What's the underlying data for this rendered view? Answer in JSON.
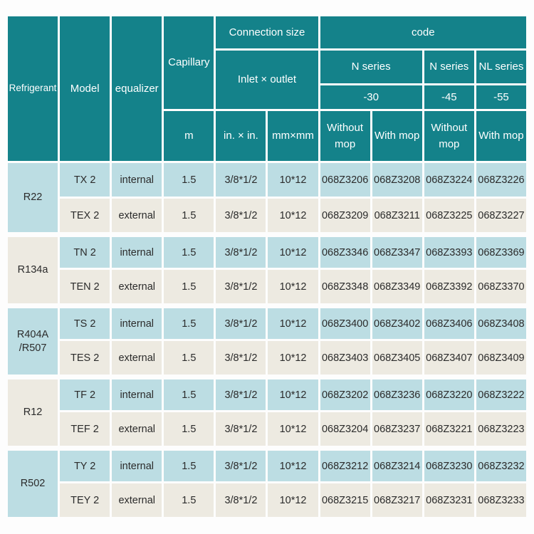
{
  "colors": {
    "header_teal": "#14828a",
    "row_blue": "#bcdde3",
    "row_cream": "#edeae1",
    "separator_white": "#fdfdfd",
    "data_text": "#2b2b2b",
    "header_text": "#ffffff"
  },
  "header": {
    "refrigerant": "Refrigerant",
    "model": "Model",
    "equalizer": "equalizer",
    "capillary": "Capillary",
    "capillary_unit": "m",
    "connection_size": "Connection size",
    "inlet_outlet": "Inlet × outlet",
    "in_x_in": "in. × in.",
    "mm_x_mm": "mm×mm",
    "code": "code",
    "n_series_1": "N series",
    "n_series_2": "N series",
    "nl_series": "NL series",
    "temp_30": "-30",
    "temp_45": "-45",
    "temp_55": "-55",
    "without_mop_1": "Without mop",
    "with_mop_1": "With mop",
    "without_mop_2": "Without mop",
    "with_mop_2": "With mop"
  },
  "groups": [
    {
      "refrigerant": "R22",
      "rows": [
        {
          "model": "TX 2",
          "equalizer": "internal",
          "capillary": "1.5",
          "inlet": "3/8*1/2",
          "mm": "10*12",
          "codes": [
            "068Z3206",
            "068Z3208",
            "068Z3224",
            "068Z3226"
          ]
        },
        {
          "model": "TEX 2",
          "equalizer": "external",
          "capillary": "1.5",
          "inlet": "3/8*1/2",
          "mm": "10*12",
          "codes": [
            "068Z3209",
            "068Z3211",
            "068Z3225",
            "068Z3227"
          ]
        }
      ]
    },
    {
      "refrigerant": "R134a",
      "rows": [
        {
          "model": "TN 2",
          "equalizer": "internal",
          "capillary": "1.5",
          "inlet": "3/8*1/2",
          "mm": "10*12",
          "codes": [
            "068Z3346",
            "068Z3347",
            "068Z3393",
            "068Z3369"
          ]
        },
        {
          "model": "TEN 2",
          "equalizer": "external",
          "capillary": "1.5",
          "inlet": "3/8*1/2",
          "mm": "10*12",
          "codes": [
            "068Z3348",
            "068Z3349",
            "068Z3392",
            "068Z3370"
          ]
        }
      ]
    },
    {
      "refrigerant": "R404A\n/R507",
      "rows": [
        {
          "model": "TS 2",
          "equalizer": "internal",
          "capillary": "1.5",
          "inlet": "3/8*1/2",
          "mm": "10*12",
          "codes": [
            "068Z3400",
            "068Z3402",
            "068Z3406",
            "068Z3408"
          ]
        },
        {
          "model": "TES 2",
          "equalizer": "external",
          "capillary": "1.5",
          "inlet": "3/8*1/2",
          "mm": "10*12",
          "codes": [
            "068Z3403",
            "068Z3405",
            "068Z3407",
            "068Z3409"
          ]
        }
      ]
    },
    {
      "refrigerant": "R12",
      "rows": [
        {
          "model": "TF 2",
          "equalizer": "internal",
          "capillary": "1.5",
          "inlet": "3/8*1/2",
          "mm": "10*12",
          "codes": [
            "068Z3202",
            "068Z3236",
            "068Z3220",
            "068Z3222"
          ]
        },
        {
          "model": "TEF 2",
          "equalizer": "external",
          "capillary": "1.5",
          "inlet": "3/8*1/2",
          "mm": "10*12",
          "codes": [
            "068Z3204",
            "068Z3237",
            "068Z3221",
            "068Z3223"
          ]
        }
      ]
    },
    {
      "refrigerant": "R502",
      "rows": [
        {
          "model": "TY 2",
          "equalizer": "internal",
          "capillary": "1.5",
          "inlet": "3/8*1/2",
          "mm": "10*12",
          "codes": [
            "068Z3212",
            "068Z3214",
            "068Z3230",
            "068Z3232"
          ]
        },
        {
          "model": "TEY 2",
          "equalizer": "external",
          "capillary": "1.5",
          "inlet": "3/8*1/2",
          "mm": "10*12",
          "codes": [
            "068Z3215",
            "068Z3217",
            "068Z3231",
            "068Z3233"
          ]
        }
      ]
    }
  ]
}
